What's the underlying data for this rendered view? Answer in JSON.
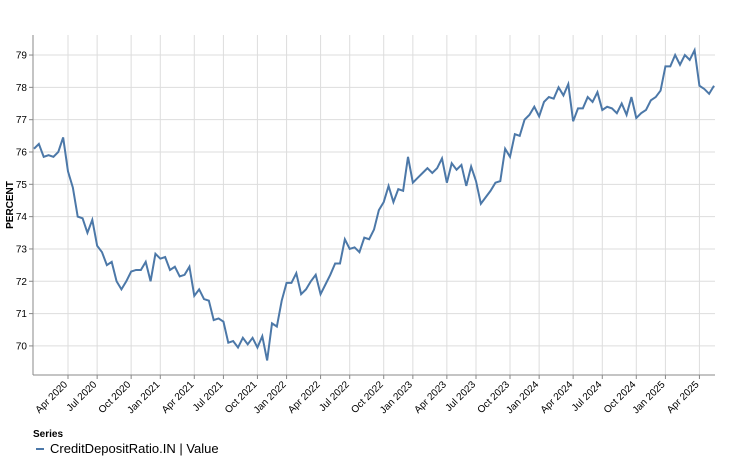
{
  "chart_data": {
    "type": "line",
    "y_label": "PERCENT",
    "legend_title": "Series",
    "categories": [
      null,
      null,
      null,
      null,
      null,
      null,
      null,
      "Apr 2020",
      null,
      null,
      null,
      null,
      null,
      "Jul 2020",
      null,
      null,
      null,
      null,
      null,
      null,
      "Oct 2020",
      null,
      null,
      null,
      null,
      null,
      "Jan 2021",
      null,
      null,
      null,
      null,
      null,
      null,
      "Apr 2021",
      null,
      null,
      null,
      null,
      null,
      "Jul 2021",
      null,
      null,
      null,
      null,
      null,
      null,
      "Oct 2021",
      null,
      null,
      null,
      null,
      null,
      "Jan 2022",
      null,
      null,
      null,
      null,
      null,
      null,
      "Apr 2022",
      null,
      null,
      null,
      null,
      null,
      "Jul 2022",
      null,
      null,
      null,
      null,
      null,
      null,
      "Oct 2022",
      null,
      null,
      null,
      null,
      null,
      "Jan 2023",
      null,
      null,
      null,
      null,
      null,
      null,
      "Apr 2023",
      null,
      null,
      null,
      null,
      null,
      "Jul 2023",
      null,
      null,
      null,
      null,
      null,
      null,
      "Oct 2023",
      null,
      null,
      null,
      null,
      null,
      "Jan 2024",
      null,
      null,
      null,
      null,
      null,
      null,
      "Apr 2024",
      null,
      null,
      null,
      null,
      null,
      "Jul 2024",
      null,
      null,
      null,
      null,
      null,
      null,
      "Oct 2024",
      null,
      null,
      null,
      null,
      null,
      "Jan 2025",
      null,
      null,
      null,
      null,
      null,
      null,
      "Apr 2025",
      null,
      null,
      null
    ],
    "series": [
      {
        "name": "CreditDepositRatio.IN | Value",
        "color": "#4c78a8",
        "values": [
          76.1,
          76.25,
          75.85,
          75.9,
          75.85,
          76.0,
          76.45,
          75.4,
          74.9,
          74.0,
          73.95,
          73.5,
          73.9,
          73.1,
          72.9,
          72.5,
          72.6,
          72.0,
          71.75,
          72.0,
          72.3,
          72.35,
          72.35,
          72.6,
          72.0,
          72.85,
          72.7,
          72.75,
          72.35,
          72.45,
          72.15,
          72.2,
          72.45,
          71.55,
          71.75,
          71.45,
          71.4,
          70.8,
          70.85,
          70.75,
          70.1,
          70.15,
          69.95,
          70.25,
          70.05,
          70.25,
          69.95,
          70.3,
          69.55,
          70.7,
          70.6,
          71.4,
          71.95,
          71.95,
          72.25,
          71.6,
          71.75,
          72.0,
          72.2,
          71.6,
          71.9,
          72.2,
          72.55,
          72.55,
          73.3,
          73.0,
          73.05,
          72.9,
          73.35,
          73.3,
          73.6,
          74.2,
          74.45,
          74.95,
          74.45,
          74.85,
          74.8,
          75.85,
          75.05,
          75.2,
          75.35,
          75.5,
          75.35,
          75.5,
          75.8,
          75.05,
          75.65,
          75.45,
          75.6,
          74.95,
          75.55,
          75.1,
          74.4,
          74.6,
          74.8,
          75.05,
          75.1,
          76.1,
          75.85,
          76.55,
          76.5,
          77.0,
          77.15,
          77.4,
          77.1,
          77.55,
          77.7,
          77.65,
          78.0,
          77.75,
          78.1,
          76.95,
          77.35,
          77.35,
          77.7,
          77.55,
          77.85,
          77.3,
          77.4,
          77.35,
          77.2,
          77.5,
          77.15,
          77.7,
          77.05,
          77.2,
          77.3,
          77.6,
          77.7,
          77.9,
          78.65,
          78.65,
          79.0,
          78.7,
          79.0,
          78.85,
          79.15,
          78.05,
          77.95,
          77.8,
          78.05
        ]
      }
    ],
    "ylim": [
      69.1,
      79.62
    ],
    "yticks": [
      70,
      71,
      72,
      73,
      74,
      75,
      76,
      77,
      78,
      79
    ],
    "grid": true
  }
}
